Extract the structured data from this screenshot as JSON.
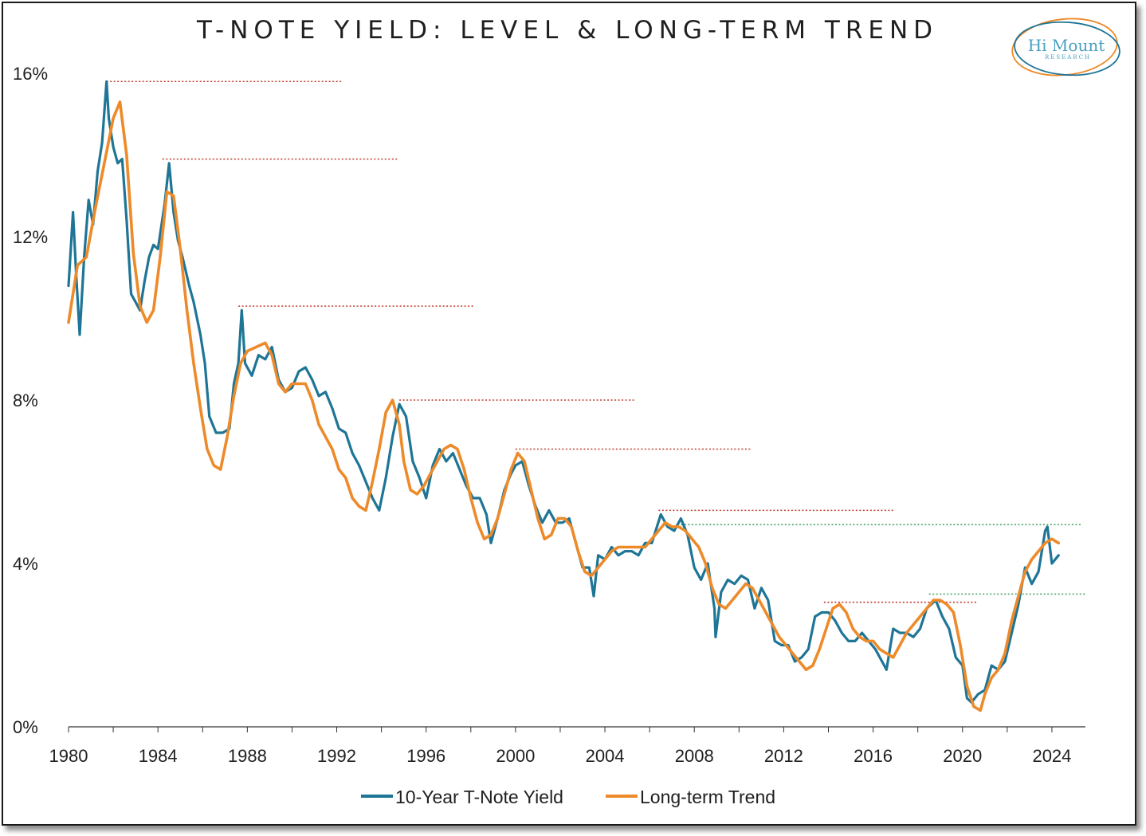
{
  "chart_data": {
    "type": "line",
    "title": "T-NOTE YIELD: LEVEL & LONG-TERM TREND",
    "xlabel": "",
    "ylabel": "",
    "xlim": [
      1980,
      2025.5
    ],
    "ylim": [
      0,
      16
    ],
    "x_ticks": [
      1980,
      1984,
      1988,
      1992,
      1996,
      2000,
      2004,
      2008,
      2012,
      2016,
      2020,
      2024
    ],
    "y_ticks": [
      0,
      4,
      8,
      12,
      16
    ],
    "y_tick_labels": [
      "0%",
      "4%",
      "8%",
      "12%",
      "16%"
    ],
    "legend_position": "bottom",
    "colors": {
      "yield": "#1e7596",
      "trend": "#ed8a2a",
      "peak_line": "#c0392b",
      "range_line": "#4aa36b"
    },
    "series": [
      {
        "name": "10-Year T-Note Yield",
        "x": [
          1980.0,
          1980.2,
          1980.35,
          1980.5,
          1980.7,
          1980.9,
          1981.1,
          1981.3,
          1981.5,
          1981.7,
          1981.8,
          1982.0,
          1982.2,
          1982.4,
          1982.6,
          1982.8,
          1983.0,
          1983.2,
          1983.4,
          1983.6,
          1983.8,
          1984.0,
          1984.3,
          1984.5,
          1984.7,
          1984.9,
          1985.1,
          1985.4,
          1985.6,
          1985.9,
          1986.1,
          1986.3,
          1986.6,
          1986.9,
          1987.2,
          1987.4,
          1987.6,
          1987.75,
          1987.9,
          1988.2,
          1988.5,
          1988.8,
          1989.1,
          1989.4,
          1989.7,
          1990.0,
          1990.3,
          1990.6,
          1990.9,
          1991.2,
          1991.5,
          1991.8,
          1992.1,
          1992.4,
          1992.7,
          1993.0,
          1993.3,
          1993.6,
          1993.9,
          1994.2,
          1994.5,
          1994.8,
          1995.1,
          1995.4,
          1995.7,
          1996.0,
          1996.3,
          1996.6,
          1996.9,
          1997.2,
          1997.5,
          1997.8,
          1998.1,
          1998.4,
          1998.7,
          1998.9,
          1999.2,
          1999.5,
          1999.8,
          2000.0,
          2000.3,
          2000.6,
          2000.9,
          2001.2,
          2001.5,
          2001.8,
          2002.1,
          2002.4,
          2002.7,
          2003.0,
          2003.3,
          2003.5,
          2003.7,
          2004.0,
          2004.3,
          2004.6,
          2004.9,
          2005.2,
          2005.5,
          2005.8,
          2006.1,
          2006.5,
          2006.8,
          2007.1,
          2007.4,
          2007.7,
          2008.0,
          2008.3,
          2008.6,
          2008.9,
          2008.95,
          2009.2,
          2009.5,
          2009.8,
          2010.1,
          2010.4,
          2010.7,
          2011.0,
          2011.3,
          2011.6,
          2011.9,
          2012.2,
          2012.5,
          2012.8,
          2013.1,
          2013.4,
          2013.7,
          2014.0,
          2014.3,
          2014.6,
          2014.9,
          2015.2,
          2015.5,
          2015.8,
          2016.1,
          2016.4,
          2016.6,
          2016.9,
          2017.2,
          2017.5,
          2017.8,
          2018.1,
          2018.4,
          2018.8,
          2019.1,
          2019.4,
          2019.7,
          2020.0,
          2020.2,
          2020.4,
          2020.7,
          2021.0,
          2021.3,
          2021.6,
          2021.9,
          2022.2,
          2022.5,
          2022.8,
          2023.1,
          2023.4,
          2023.7,
          2023.8,
          2024.0,
          2024.3
        ],
        "values": [
          10.8,
          12.6,
          11.0,
          9.6,
          11.5,
          12.9,
          12.3,
          13.6,
          14.3,
          15.8,
          14.9,
          14.2,
          13.8,
          13.9,
          12.4,
          10.6,
          10.4,
          10.2,
          10.9,
          11.5,
          11.8,
          11.7,
          12.8,
          13.8,
          12.6,
          11.9,
          11.5,
          10.8,
          10.4,
          9.6,
          8.9,
          7.6,
          7.2,
          7.2,
          7.3,
          8.4,
          8.9,
          10.2,
          8.9,
          8.6,
          9.1,
          9.0,
          9.3,
          8.5,
          8.2,
          8.3,
          8.7,
          8.8,
          8.5,
          8.1,
          8.2,
          7.8,
          7.3,
          7.2,
          6.7,
          6.4,
          6.0,
          5.6,
          5.3,
          6.1,
          7.1,
          7.9,
          7.6,
          6.5,
          6.1,
          5.6,
          6.4,
          6.8,
          6.5,
          6.7,
          6.3,
          5.9,
          5.6,
          5.6,
          5.2,
          4.5,
          5.1,
          5.8,
          6.2,
          6.4,
          6.5,
          5.9,
          5.4,
          5.0,
          5.3,
          5.0,
          5.0,
          5.1,
          4.5,
          3.9,
          3.9,
          3.2,
          4.2,
          4.1,
          4.4,
          4.2,
          4.3,
          4.3,
          4.2,
          4.5,
          4.5,
          5.2,
          4.9,
          4.8,
          5.1,
          4.7,
          3.9,
          3.6,
          4.0,
          2.9,
          2.2,
          3.3,
          3.6,
          3.5,
          3.7,
          3.6,
          2.9,
          3.4,
          3.1,
          2.1,
          2.0,
          2.0,
          1.6,
          1.7,
          1.9,
          2.7,
          2.8,
          2.8,
          2.6,
          2.3,
          2.1,
          2.1,
          2.3,
          2.1,
          1.9,
          1.6,
          1.4,
          2.4,
          2.3,
          2.3,
          2.2,
          2.4,
          2.9,
          3.1,
          2.7,
          2.4,
          1.7,
          1.5,
          0.7,
          0.6,
          0.8,
          0.9,
          1.5,
          1.4,
          1.6,
          2.3,
          3.0,
          3.9,
          3.5,
          3.8,
          4.8,
          4.9,
          4.0,
          4.2
        ]
      },
      {
        "name": "Long-term Trend",
        "x": [
          1980.0,
          1980.4,
          1980.8,
          1981.2,
          1981.6,
          1982.0,
          1982.3,
          1982.6,
          1982.9,
          1983.2,
          1983.5,
          1983.8,
          1984.1,
          1984.4,
          1984.7,
          1985.0,
          1985.3,
          1985.6,
          1985.9,
          1986.2,
          1986.5,
          1986.8,
          1987.1,
          1987.4,
          1987.7,
          1988.0,
          1988.4,
          1988.8,
          1989.1,
          1989.4,
          1989.7,
          1990.0,
          1990.3,
          1990.6,
          1990.9,
          1991.2,
          1991.5,
          1991.8,
          1992.1,
          1992.4,
          1992.7,
          1993.0,
          1993.3,
          1993.6,
          1993.9,
          1994.2,
          1994.5,
          1994.8,
          1995.0,
          1995.3,
          1995.6,
          1995.9,
          1996.2,
          1996.5,
          1996.8,
          1997.1,
          1997.4,
          1997.7,
          1998.0,
          1998.3,
          1998.6,
          1998.9,
          1999.2,
          1999.5,
          1999.8,
          2000.1,
          2000.4,
          2000.7,
          2001.0,
          2001.3,
          2001.6,
          2001.9,
          2002.2,
          2002.5,
          2002.8,
          2003.1,
          2003.4,
          2003.7,
          2004.0,
          2004.3,
          2004.6,
          2004.9,
          2005.2,
          2005.5,
          2005.8,
          2006.1,
          2006.4,
          2006.7,
          2007.0,
          2007.3,
          2007.6,
          2007.9,
          2008.2,
          2008.5,
          2008.8,
          2009.1,
          2009.4,
          2009.7,
          2010.0,
          2010.3,
          2010.6,
          2010.9,
          2011.2,
          2011.5,
          2011.8,
          2012.1,
          2012.4,
          2012.7,
          2013.0,
          2013.3,
          2013.6,
          2013.9,
          2014.2,
          2014.5,
          2014.8,
          2015.1,
          2015.4,
          2015.7,
          2016.0,
          2016.3,
          2016.6,
          2016.9,
          2017.2,
          2017.5,
          2017.8,
          2018.1,
          2018.4,
          2018.7,
          2019.0,
          2019.3,
          2019.6,
          2019.9,
          2020.2,
          2020.5,
          2020.8,
          2021.0,
          2021.3,
          2021.6,
          2021.9,
          2022.2,
          2022.5,
          2022.8,
          2023.1,
          2023.4,
          2023.7,
          2024.0,
          2024.3
        ],
        "values": [
          9.9,
          11.3,
          11.5,
          12.7,
          13.8,
          14.9,
          15.3,
          14.0,
          11.6,
          10.3,
          9.9,
          10.2,
          11.5,
          13.1,
          13.0,
          11.7,
          10.2,
          8.9,
          7.8,
          6.8,
          6.4,
          6.3,
          7.1,
          8.1,
          8.9,
          9.2,
          9.3,
          9.4,
          9.1,
          8.4,
          8.2,
          8.4,
          8.4,
          8.4,
          8.0,
          7.4,
          7.1,
          6.8,
          6.3,
          6.1,
          5.6,
          5.4,
          5.3,
          6.0,
          6.8,
          7.7,
          8.0,
          7.4,
          6.5,
          5.8,
          5.7,
          5.9,
          6.2,
          6.5,
          6.8,
          6.9,
          6.8,
          6.3,
          5.6,
          5.0,
          4.6,
          4.7,
          5.1,
          5.7,
          6.3,
          6.7,
          6.5,
          5.8,
          5.1,
          4.6,
          4.7,
          5.1,
          5.1,
          4.9,
          4.3,
          3.8,
          3.7,
          3.9,
          4.1,
          4.3,
          4.4,
          4.4,
          4.4,
          4.4,
          4.4,
          4.6,
          4.8,
          5.0,
          4.9,
          4.9,
          4.8,
          4.6,
          4.4,
          4.0,
          3.4,
          3.0,
          2.9,
          3.1,
          3.3,
          3.5,
          3.4,
          3.1,
          2.8,
          2.5,
          2.2,
          2.0,
          1.8,
          1.6,
          1.4,
          1.5,
          1.9,
          2.4,
          2.9,
          3.0,
          2.8,
          2.4,
          2.2,
          2.1,
          2.1,
          1.9,
          1.8,
          1.7,
          2.0,
          2.3,
          2.5,
          2.7,
          2.9,
          3.1,
          3.1,
          3.0,
          2.8,
          2.0,
          1.0,
          0.5,
          0.4,
          0.8,
          1.2,
          1.4,
          1.8,
          2.6,
          3.2,
          3.8,
          4.1,
          4.3,
          4.5,
          4.6,
          4.5
        ]
      }
    ],
    "reference_lines": [
      {
        "kind": "peak",
        "y": 15.8,
        "x_start": 1981.7,
        "x_end": 1992.2
      },
      {
        "kind": "peak",
        "y": 13.9,
        "x_start": 1984.2,
        "x_end": 1994.7
      },
      {
        "kind": "peak",
        "y": 10.3,
        "x_start": 1987.6,
        "x_end": 1998.1
      },
      {
        "kind": "peak",
        "y": 8.0,
        "x_start": 1994.8,
        "x_end": 2005.3
      },
      {
        "kind": "peak",
        "y": 6.8,
        "x_start": 2000.0,
        "x_end": 2010.5
      },
      {
        "kind": "peak",
        "y": 5.3,
        "x_start": 2006.4,
        "x_end": 2016.9
      },
      {
        "kind": "peak",
        "y": 3.05,
        "x_start": 2013.8,
        "x_end": 2020.7
      },
      {
        "kind": "range",
        "y": 4.95,
        "x_start": 2007.4,
        "x_end": 2025.3
      },
      {
        "kind": "range",
        "y": 3.25,
        "x_start": 2018.5,
        "x_end": 2025.5
      }
    ]
  },
  "legend": {
    "items": [
      {
        "label": "10-Year T-Note Yield",
        "color": "#1e7596"
      },
      {
        "label": "Long-term Trend",
        "color": "#ed8a2a"
      }
    ]
  },
  "logo": {
    "name": "Hi Mount",
    "tagline": "RESEARCH"
  }
}
